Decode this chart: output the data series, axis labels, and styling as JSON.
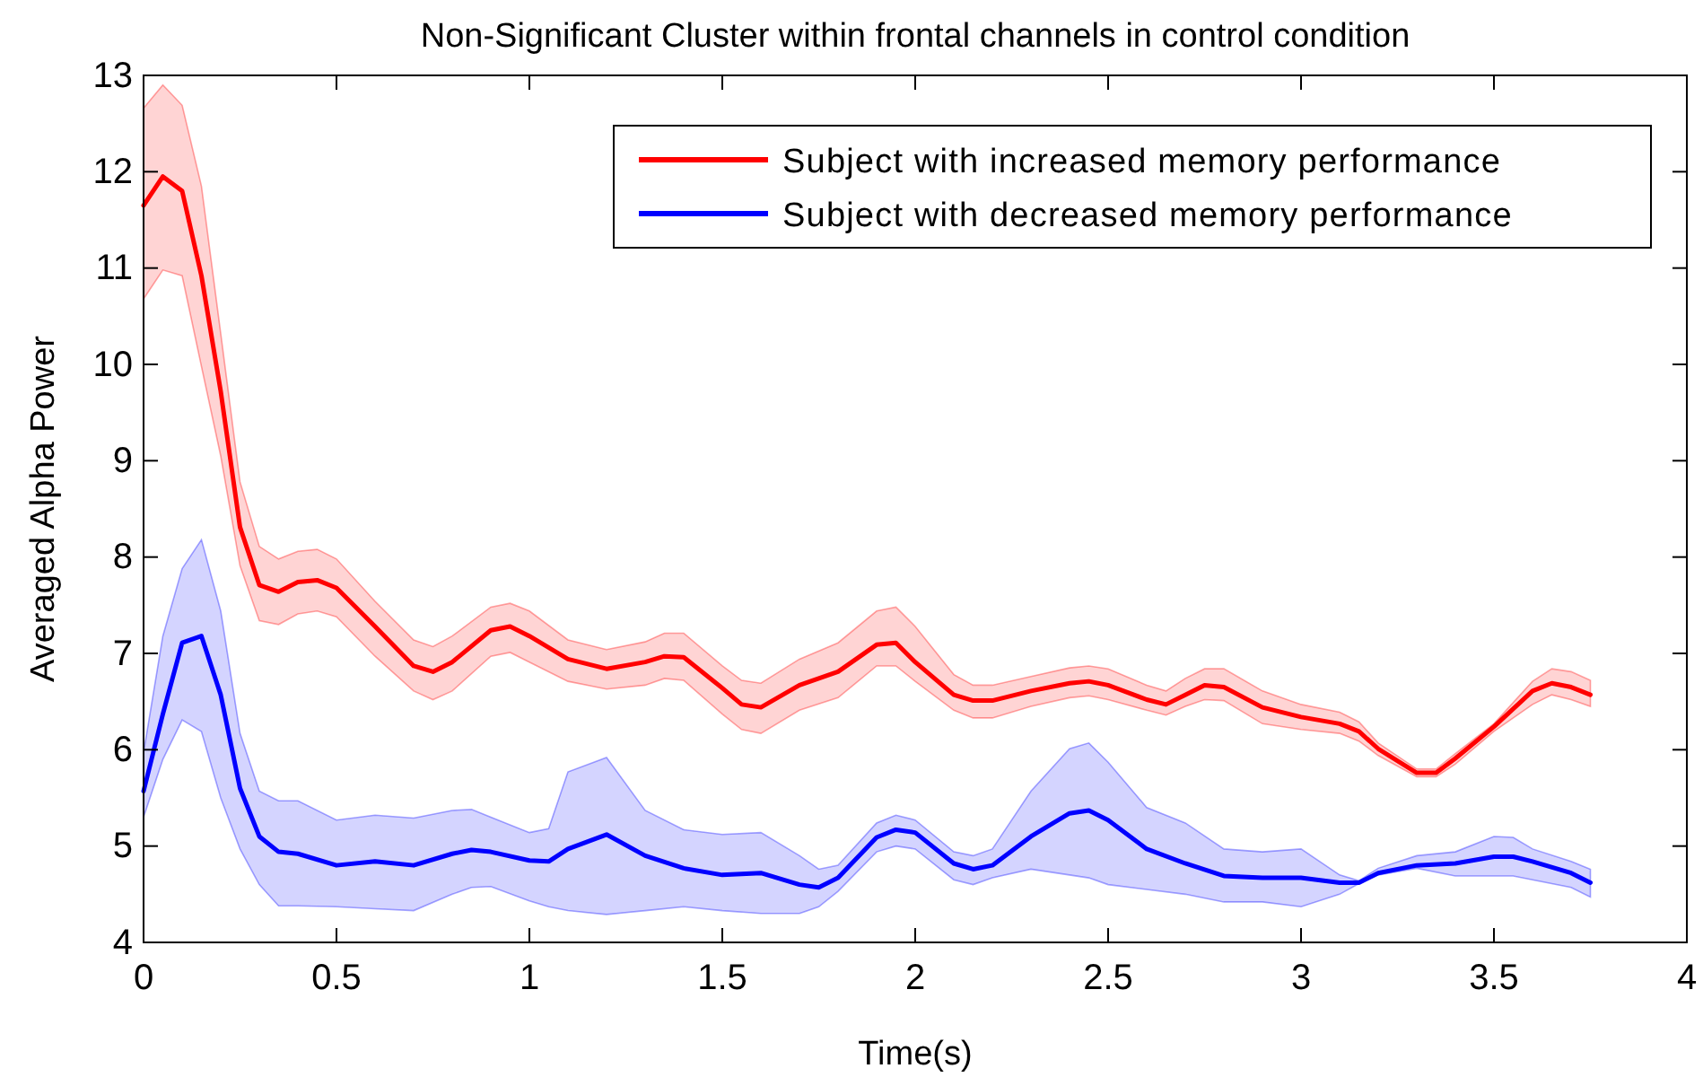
{
  "chart_data": {
    "type": "line",
    "title": "Non-Significant Cluster within frontal channels in control condition",
    "xlabel": "Time(s)",
    "ylabel": "Averaged Alpha Power",
    "xlim": [
      0,
      4
    ],
    "xticks": [
      0,
      0.5,
      1,
      1.5,
      2,
      2.5,
      3,
      3.5,
      4
    ],
    "ylim": [
      4,
      13
    ],
    "yticks": [
      4,
      5,
      6,
      7,
      8,
      9,
      10,
      11,
      12,
      13
    ],
    "grid": false,
    "legend": "top right",
    "line_style": "solid",
    "series": [
      {
        "name": "Subject with increased memory performance",
        "color": "#ff0000",
        "x": [
          0,
          0.05,
          0.1,
          0.15,
          0.2,
          0.25,
          0.3,
          0.35,
          0.4,
          0.45,
          0.5,
          0.6,
          0.7,
          0.75,
          0.8,
          0.9,
          0.95,
          1,
          1.1,
          1.2,
          1.3,
          1.35,
          1.4,
          1.5,
          1.55,
          1.6,
          1.7,
          1.8,
          1.9,
          1.95,
          2,
          2.1,
          2.15,
          2.2,
          2.3,
          2.4,
          2.45,
          2.5,
          2.6,
          2.65,
          2.7,
          2.75,
          2.8,
          2.9,
          3,
          3.1,
          3.15,
          3.2,
          3.3,
          3.35,
          3.4,
          3.5,
          3.6,
          3.65,
          3.7,
          3.75
        ],
        "values": [
          11.65,
          11.95,
          11.8,
          10.92,
          9.72,
          8.31,
          7.71,
          7.64,
          7.74,
          7.76,
          7.68,
          7.28,
          6.87,
          6.81,
          6.91,
          7.24,
          7.28,
          7.18,
          6.94,
          6.84,
          6.91,
          6.97,
          6.96,
          6.64,
          6.47,
          6.44,
          6.67,
          6.81,
          7.09,
          7.11,
          6.91,
          6.57,
          6.51,
          6.51,
          6.61,
          6.69,
          6.71,
          6.67,
          6.52,
          6.47,
          6.57,
          6.67,
          6.65,
          6.44,
          6.34,
          6.27,
          6.19,
          6.01,
          5.76,
          5.76,
          5.91,
          6.24,
          6.61,
          6.69,
          6.65,
          6.57
        ],
        "upper": [
          12.66,
          12.9,
          12.69,
          11.85,
          10.32,
          8.78,
          8.11,
          7.98,
          8.06,
          8.08,
          7.98,
          7.54,
          7.14,
          7.07,
          7.18,
          7.48,
          7.52,
          7.44,
          7.14,
          7.04,
          7.12,
          7.21,
          7.21,
          6.87,
          6.72,
          6.69,
          6.94,
          7.11,
          7.44,
          7.48,
          7.28,
          6.78,
          6.67,
          6.67,
          6.76,
          6.85,
          6.87,
          6.84,
          6.67,
          6.61,
          6.74,
          6.84,
          6.84,
          6.61,
          6.47,
          6.39,
          6.29,
          6.07,
          5.8,
          5.8,
          5.96,
          6.27,
          6.71,
          6.84,
          6.81,
          6.72
        ],
        "lower": [
          10.68,
          10.98,
          10.92,
          9.98,
          9.05,
          7.91,
          7.34,
          7.3,
          7.41,
          7.44,
          7.38,
          6.97,
          6.61,
          6.52,
          6.61,
          6.97,
          7.01,
          6.91,
          6.71,
          6.63,
          6.67,
          6.74,
          6.72,
          6.37,
          6.21,
          6.17,
          6.41,
          6.54,
          6.87,
          6.87,
          6.71,
          6.41,
          6.33,
          6.33,
          6.45,
          6.54,
          6.56,
          6.52,
          6.41,
          6.36,
          6.45,
          6.52,
          6.51,
          6.27,
          6.21,
          6.17,
          6.09,
          5.94,
          5.72,
          5.72,
          5.85,
          6.19,
          6.47,
          6.57,
          6.52,
          6.45
        ]
      },
      {
        "name": "Subject with decreased memory performance",
        "color": "#0000ff",
        "x": [
          0,
          0.05,
          0.1,
          0.15,
          0.2,
          0.25,
          0.3,
          0.35,
          0.4,
          0.5,
          0.6,
          0.7,
          0.8,
          0.85,
          0.9,
          1,
          1.05,
          1.1,
          1.2,
          1.3,
          1.4,
          1.5,
          1.6,
          1.7,
          1.75,
          1.8,
          1.9,
          1.95,
          2,
          2.1,
          2.15,
          2.2,
          2.3,
          2.4,
          2.45,
          2.5,
          2.6,
          2.7,
          2.8,
          2.9,
          3,
          3.1,
          3.15,
          3.2,
          3.3,
          3.4,
          3.5,
          3.55,
          3.6,
          3.7,
          3.75
        ],
        "values": [
          5.57,
          6.37,
          7.11,
          7.18,
          6.57,
          5.6,
          5.1,
          4.94,
          4.92,
          4.8,
          4.84,
          4.8,
          4.92,
          4.96,
          4.94,
          4.85,
          4.84,
          4.97,
          5.12,
          4.9,
          4.77,
          4.7,
          4.72,
          4.6,
          4.57,
          4.67,
          5.09,
          5.17,
          5.14,
          4.82,
          4.76,
          4.8,
          5.1,
          5.34,
          5.37,
          5.27,
          4.97,
          4.82,
          4.69,
          4.67,
          4.67,
          4.62,
          4.62,
          4.72,
          4.8,
          4.82,
          4.89,
          4.89,
          4.84,
          4.72,
          4.62
        ],
        "upper": [
          5.97,
          7.18,
          7.88,
          8.18,
          7.44,
          6.17,
          5.57,
          5.47,
          5.47,
          5.27,
          5.32,
          5.29,
          5.37,
          5.38,
          5.3,
          5.14,
          5.18,
          5.77,
          5.92,
          5.37,
          5.17,
          5.12,
          5.14,
          4.9,
          4.76,
          4.8,
          5.24,
          5.32,
          5.27,
          4.94,
          4.9,
          4.97,
          5.57,
          6.01,
          6.07,
          5.87,
          5.4,
          5.24,
          4.97,
          4.94,
          4.97,
          4.7,
          4.64,
          4.77,
          4.9,
          4.94,
          5.1,
          5.09,
          4.97,
          4.84,
          4.76
        ],
        "lower": [
          5.3,
          5.9,
          6.31,
          6.19,
          5.5,
          4.97,
          4.6,
          4.38,
          4.38,
          4.37,
          4.35,
          4.33,
          4.5,
          4.57,
          4.58,
          4.43,
          4.37,
          4.33,
          4.29,
          4.33,
          4.37,
          4.33,
          4.3,
          4.3,
          4.37,
          4.53,
          4.94,
          5,
          4.97,
          4.65,
          4.6,
          4.67,
          4.76,
          4.7,
          4.67,
          4.6,
          4.55,
          4.5,
          4.42,
          4.42,
          4.37,
          4.5,
          4.61,
          4.7,
          4.77,
          4.69,
          4.69,
          4.69,
          4.65,
          4.57,
          4.47
        ]
      }
    ]
  }
}
